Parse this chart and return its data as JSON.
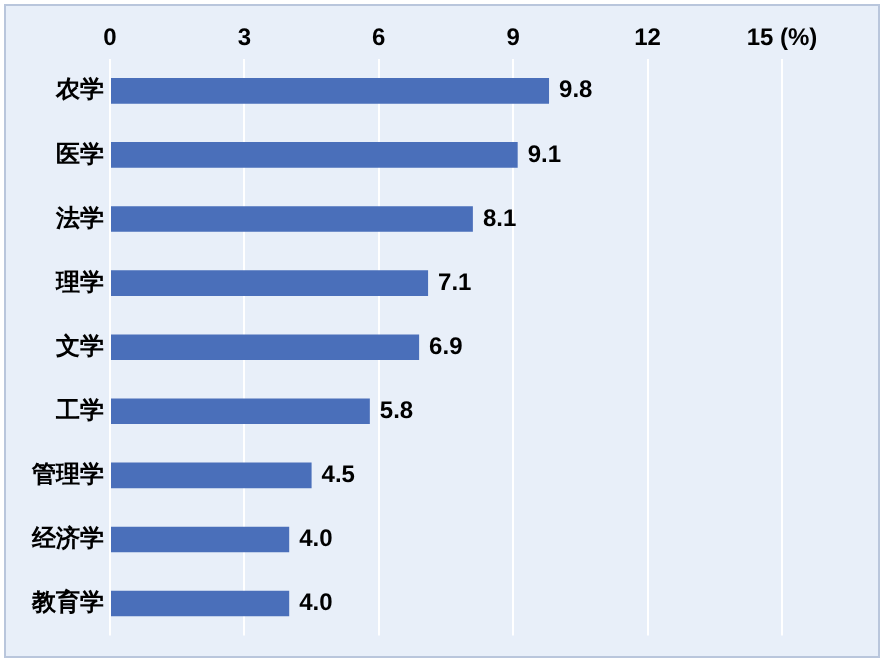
{
  "chart_data": {
    "type": "bar",
    "orientation": "horizontal",
    "categories": [
      "农学",
      "医学",
      "法学",
      "理学",
      "文学",
      "工学",
      "管理学",
      "经济学",
      "教育学"
    ],
    "values": [
      9.8,
      9.1,
      8.1,
      7.1,
      6.9,
      5.8,
      4.5,
      4.0,
      4.0
    ],
    "color": "#4a6fba",
    "xlim": [
      0,
      15
    ],
    "xticks": [
      0,
      3,
      6,
      9,
      12,
      {
        "value": 15,
        "label": "15 (%)"
      }
    ],
    "grid": "x",
    "value_labels": [
      "9.8",
      "9.1",
      "8.1",
      "7.1",
      "6.9",
      "5.8",
      "4.5",
      "4.0",
      "4.0"
    ]
  }
}
